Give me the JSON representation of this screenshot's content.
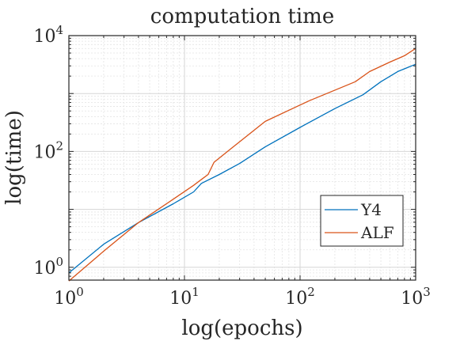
{
  "chart_data": {
    "type": "line",
    "title": "computation time",
    "xlabel": "log(epochs)",
    "ylabel": "log(time)",
    "x_scale": "log",
    "y_scale": "log",
    "xlim": [
      1,
      1000
    ],
    "ylim": [
      0.6,
      10000
    ],
    "grid": true,
    "legend_position": "bottom-right",
    "x_ticks": [
      {
        "value": 1,
        "base": "10",
        "exp": "0"
      },
      {
        "value": 10,
        "base": "10",
        "exp": "1"
      },
      {
        "value": 100,
        "base": "10",
        "exp": "2"
      },
      {
        "value": 1000,
        "base": "10",
        "exp": "3"
      }
    ],
    "y_ticks": [
      {
        "value": 1,
        "base": "10",
        "exp": "0"
      },
      {
        "value": 100,
        "base": "10",
        "exp": "2"
      },
      {
        "value": 10000,
        "base": "10",
        "exp": "4"
      }
    ],
    "series": [
      {
        "name": "Y4",
        "color": "#0072BD",
        "x": [
          1,
          2,
          4,
          8,
          12,
          14,
          20,
          30,
          50,
          100,
          200,
          350,
          500,
          700,
          1000
        ],
        "y": [
          0.8,
          2.5,
          5.9,
          12.5,
          20,
          28,
          40,
          62,
          120,
          260,
          550,
          950,
          1600,
          2400,
          3200
        ]
      },
      {
        "name": "ALF",
        "color": "#D95319",
        "x": [
          1,
          2,
          4,
          8,
          12,
          16,
          18,
          25,
          50,
          120,
          300,
          400,
          600,
          800,
          1000
        ],
        "y": [
          0.58,
          1.9,
          5.9,
          15,
          26,
          40,
          65,
          110,
          330,
          750,
          1600,
          2400,
          3500,
          4500,
          6000
        ]
      }
    ]
  }
}
